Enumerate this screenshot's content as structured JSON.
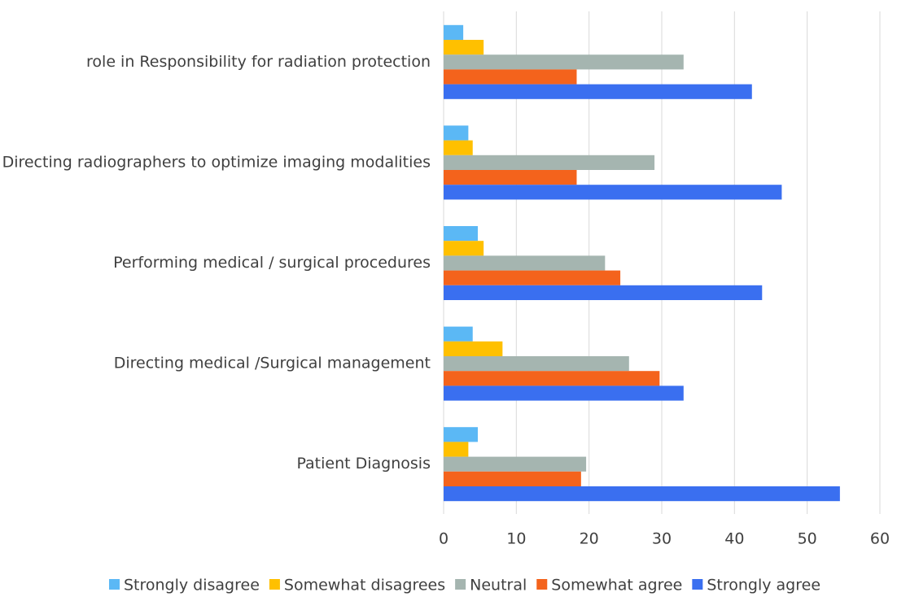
{
  "chart_data": {
    "type": "hbar",
    "categories": [
      "role in Responsibility for radiation protection",
      "Directing radiographers to optimize imaging modalities",
      "Performing medical / surgical procedures",
      "Directing medical /Surgical management",
      "Patient Diagnosis"
    ],
    "series": [
      {
        "name": "Strongly disagree",
        "color": "#5bb8f5",
        "values": [
          2.7,
          3.4,
          4.7,
          4.0,
          4.7
        ]
      },
      {
        "name": "Somewhat disagrees",
        "color": "#ffc000",
        "values": [
          5.5,
          4.0,
          5.5,
          8.1,
          3.4
        ]
      },
      {
        "name": "Neutral",
        "color": "#a5b5b0",
        "values": [
          33,
          29,
          22.2,
          25.5,
          19.6
        ]
      },
      {
        "name": "Somewhat agree",
        "color": "#f4631c",
        "values": [
          18.3,
          18.3,
          24.3,
          29.7,
          18.9
        ]
      },
      {
        "name": "Strongly agree",
        "color": "#3a6ff0",
        "values": [
          42.4,
          46.5,
          43.8,
          33,
          54.5
        ]
      }
    ],
    "xlim": [
      0,
      60
    ],
    "xticks": [
      0,
      10,
      20,
      30,
      40,
      50,
      60
    ],
    "grid": true,
    "legend": "bottom"
  }
}
